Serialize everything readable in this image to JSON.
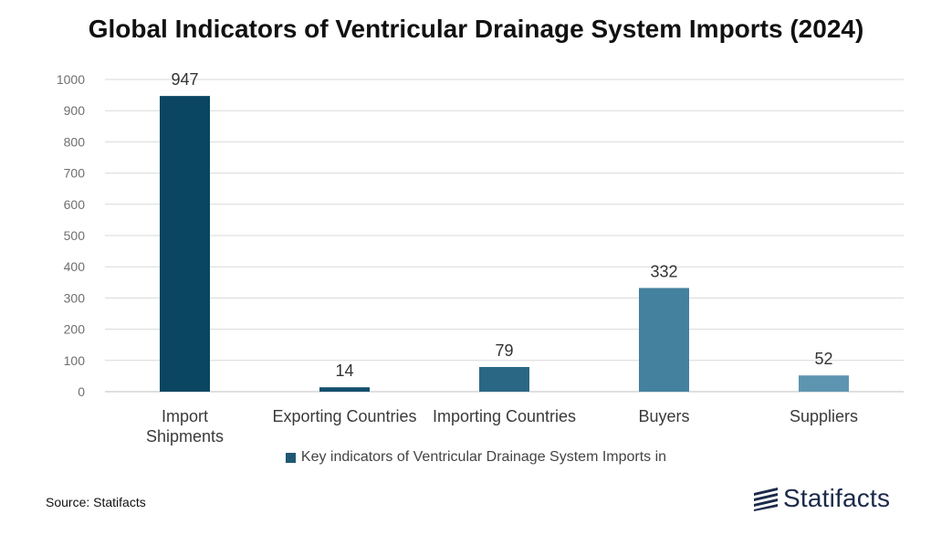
{
  "title": "Global Indicators of Ventricular Drainage System Imports (2024)",
  "legend_label": "Key indicators of Ventricular Drainage System Imports in",
  "source": "Source: Statifacts",
  "brand": "Statifacts",
  "colors": {
    "legend_swatch": "#1f5873",
    "grid": "#d9d9d9",
    "axis": "#bfbfbf",
    "brand": "#1b2a4a"
  },
  "chart_data": {
    "type": "bar",
    "categories": [
      [
        "Import",
        "Shipments"
      ],
      [
        "Exporting Countries"
      ],
      [
        "Importing Countries"
      ],
      [
        "Buyers"
      ],
      [
        "Suppliers"
      ]
    ],
    "values": [
      947,
      14,
      79,
      332,
      52
    ],
    "bar_colors": [
      "#0a4662",
      "#134f6c",
      "#2a6784",
      "#43819f",
      "#5d95b0"
    ],
    "ylim": [
      0,
      1000
    ],
    "yticks": [
      0,
      100,
      200,
      300,
      400,
      500,
      600,
      700,
      800,
      900,
      1000
    ],
    "grid": true,
    "legend_position": "bottom"
  }
}
